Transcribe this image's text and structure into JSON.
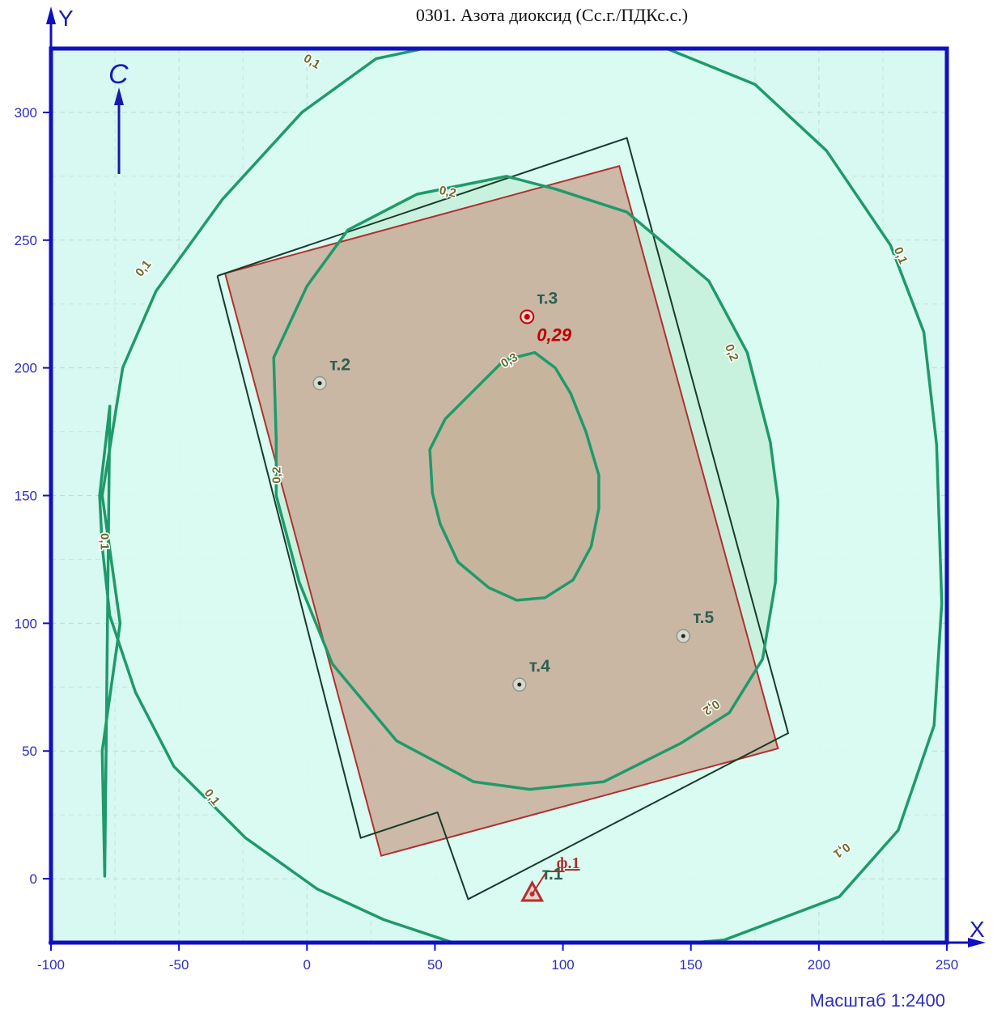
{
  "title": "0301. Азота диоксид (Сс.г./ПДКс.с.)",
  "scale_label": "Масштаб 1:2400",
  "north_label": "С",
  "axis": {
    "x_label": "X",
    "y_label": "Y",
    "x_range": [
      -100,
      250
    ],
    "y_range": [
      -25,
      325
    ],
    "x_ticks": [
      "-100",
      "-50",
      "0",
      "50",
      "100",
      "150",
      "200",
      "250"
    ],
    "y_ticks": [
      "0",
      "50",
      "100",
      "150",
      "200",
      "250",
      "300"
    ]
  },
  "colors": {
    "background": "#d7f9f2",
    "iso_zone_02": "#c4f0dc",
    "iso_line": "#1f9a6a",
    "frame": "#1010c0",
    "site_fill": "#c9ad9a",
    "site_stroke": "#b03030",
    "outline": "#1a3a2a"
  },
  "isolines": [
    {
      "level": "0,1",
      "points": [
        [
          -79,
          1
        ],
        [
          -80,
          50
        ],
        [
          -73,
          100
        ],
        [
          -80,
          150
        ],
        [
          -72,
          200
        ],
        [
          -59,
          230
        ],
        [
          -33,
          266
        ],
        [
          -2,
          300
        ],
        [
          27,
          321
        ],
        [
          55,
          327
        ],
        [
          90,
          327
        ],
        [
          138,
          326
        ],
        [
          175,
          311
        ],
        [
          203,
          285
        ],
        [
          228,
          248
        ],
        [
          241,
          214
        ],
        [
          246,
          170
        ],
        [
          248,
          108
        ],
        [
          245,
          60
        ],
        [
          231,
          19
        ],
        [
          208,
          -7
        ],
        [
          163,
          -24
        ],
        [
          115,
          -28
        ],
        [
          60,
          -26
        ],
        [
          30,
          -16
        ],
        [
          4,
          -4
        ],
        [
          -24,
          16
        ],
        [
          -52,
          44
        ],
        [
          -67,
          73
        ],
        [
          -77,
          103
        ],
        [
          -80,
          130
        ],
        [
          -81,
          150
        ],
        [
          -77,
          185
        ],
        [
          -79,
          1
        ]
      ]
    },
    {
      "level": "0,2",
      "points": [
        [
          -13,
          204
        ],
        [
          -12,
          172
        ],
        [
          -12,
          150
        ],
        [
          -3,
          116
        ],
        [
          10,
          84
        ],
        [
          35,
          54
        ],
        [
          65,
          38
        ],
        [
          87,
          35
        ],
        [
          116,
          38
        ],
        [
          146,
          53
        ],
        [
          165,
          65
        ],
        [
          178,
          86
        ],
        [
          183,
          116
        ],
        [
          184,
          148
        ],
        [
          181,
          171
        ],
        [
          172,
          206
        ],
        [
          157,
          234
        ],
        [
          125,
          261
        ],
        [
          97,
          270
        ],
        [
          78,
          275
        ],
        [
          43,
          268
        ],
        [
          16,
          254
        ],
        [
          0,
          232
        ],
        [
          -13,
          204
        ]
      ]
    },
    {
      "level": "0,3",
      "points": [
        [
          48,
          168
        ],
        [
          54,
          180
        ],
        [
          60,
          186
        ],
        [
          77,
          203
        ],
        [
          89,
          206
        ],
        [
          97,
          200
        ],
        [
          103,
          190
        ],
        [
          109,
          175
        ],
        [
          114,
          158
        ],
        [
          114,
          145
        ],
        [
          111,
          130
        ],
        [
          104,
          117
        ],
        [
          93,
          110
        ],
        [
          82,
          109
        ],
        [
          71,
          114
        ],
        [
          59,
          124
        ],
        [
          52,
          139
        ],
        [
          49,
          151
        ],
        [
          48,
          168
        ]
      ]
    }
  ],
  "isoline_labels": [
    {
      "text": "0,1",
      "x": 2,
      "y": 320,
      "rot": 30
    },
    {
      "text": "0,1",
      "x": -64,
      "y": 239,
      "rot": -52
    },
    {
      "text": "0,1",
      "x": -79,
      "y": 132,
      "rot": 90
    },
    {
      "text": "0,1",
      "x": -37,
      "y": 32,
      "rot": 52
    },
    {
      "text": "0,1",
      "x": 232,
      "y": 244,
      "rot": 68
    },
    {
      "text": "0,1",
      "x": 209,
      "y": 11,
      "rot": 145
    },
    {
      "text": "0,2",
      "x": 55,
      "y": 269,
      "rot": 12
    },
    {
      "text": "0,2",
      "x": -12,
      "y": 158,
      "rot": -90
    },
    {
      "text": "0,2",
      "x": 166,
      "y": 206,
      "rot": 68
    },
    {
      "text": "0,2",
      "x": 158,
      "y": 67,
      "rot": 145
    },
    {
      "text": "0,3",
      "x": 79,
      "y": 203,
      "rot": -30
    }
  ],
  "site": {
    "polygon": [
      [
        -32,
        237
      ],
      [
        122,
        279
      ],
      [
        184,
        51
      ],
      [
        29,
        9
      ]
    ],
    "outline": [
      [
        -35,
        236
      ],
      [
        125,
        290
      ],
      [
        188,
        57
      ],
      [
        63,
        -8
      ],
      [
        51,
        26
      ],
      [
        21,
        16
      ]
    ]
  },
  "points": [
    {
      "label": "т.2",
      "x": 5,
      "y": 194
    },
    {
      "label": "т.3",
      "x": 86,
      "y": 220,
      "max": true,
      "value": "0,29"
    },
    {
      "label": "т.4",
      "x": 83,
      "y": 76
    },
    {
      "label": "т.5",
      "x": 147,
      "y": 95
    }
  ],
  "source": {
    "label": "ф.1",
    "point_label": "т.1",
    "x": 88,
    "y": -6
  }
}
